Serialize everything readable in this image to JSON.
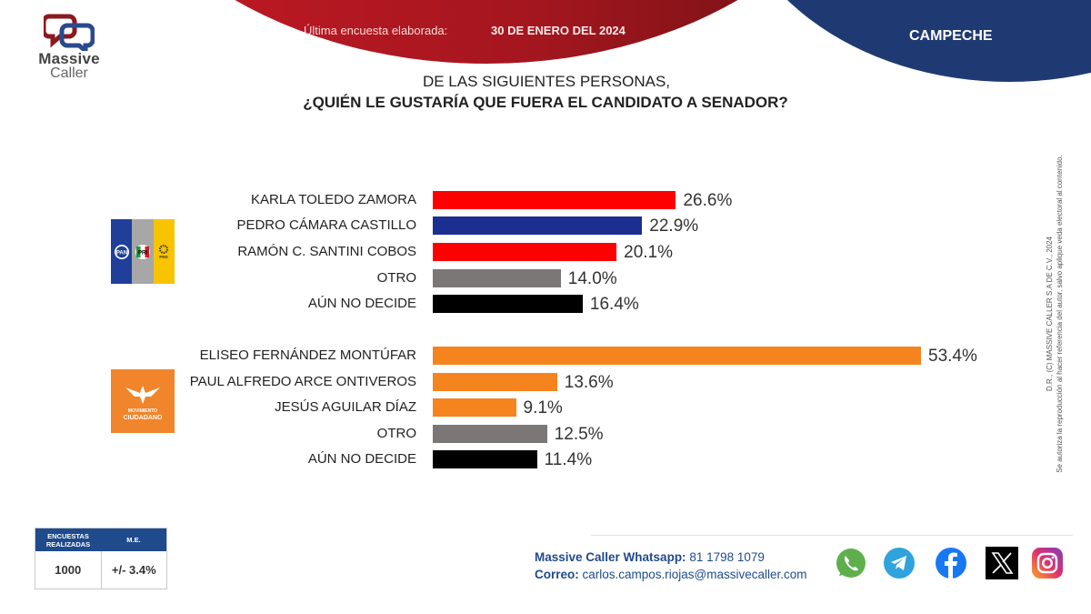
{
  "header": {
    "brand_line1": "Massive",
    "brand_line2": "Caller",
    "survey_label": "Última encuesta elaborada:",
    "survey_date": "30 DE ENERO DEL 2024",
    "state": "CAMPECHE"
  },
  "question": {
    "line1": "DE LAS SIGUIENTES  PERSONAS,",
    "line2": "¿QUIÉN LE GUSTARÍA QUE FUERA EL CANDIDATO  A SENADOR?"
  },
  "parties": {
    "coalition": {
      "logos": [
        "PAN",
        "PRI",
        "PRD"
      ],
      "colors": [
        "#1f3f9a",
        "#a7a7a7",
        "#f8c300"
      ]
    },
    "mc": {
      "line1": "MOVIMIENTO",
      "line2": "CIUDADANO",
      "color": "#f0852b"
    }
  },
  "chart_data": {
    "type": "bar",
    "orientation": "horizontal",
    "title": "¿QUIÉN LE GUSTARÍA QUE FUERA EL CANDIDATO A SENADOR?",
    "xlabel": "",
    "ylabel": "",
    "xlim": [
      0,
      60
    ],
    "grid": false,
    "groups": [
      {
        "name": "PAN-PRI-PRD",
        "categories": [
          "KARLA TOLEDO ZAMORA",
          "PEDRO CÁMARA CASTILLO",
          "RAMÓN C. SANTINI COBOS",
          "OTRO",
          "AÚN NO DECIDE"
        ],
        "values": [
          26.6,
          22.9,
          20.1,
          14.0,
          16.4
        ],
        "labels": [
          "26.6%",
          "22.9%",
          "20.1%",
          "14.0%",
          "16.4%"
        ],
        "colors": [
          "#ff0000",
          "#1a2f8f",
          "#ff0000",
          "#7b7777",
          "#000000"
        ]
      },
      {
        "name": "Movimiento Ciudadano",
        "categories": [
          "ELISEO FERNÁNDEZ MONTÚFAR",
          "PAUL ALFREDO ARCE ONTIVEROS",
          "JESÚS AGUILAR DÍAZ",
          "OTRO",
          "AÚN NO DECIDE"
        ],
        "values": [
          53.4,
          13.6,
          9.1,
          12.5,
          11.4
        ],
        "labels": [
          "53.4%",
          "13.6%",
          "9.1%",
          "12.5%",
          "11.4%"
        ],
        "colors": [
          "#f5841f",
          "#f5841f",
          "#f5841f",
          "#7b7777",
          "#000000"
        ]
      }
    ]
  },
  "copyright": {
    "line1": "D.R., (C) MASSIVE CALLER S.A DE C.V., 2024",
    "line2": "Se autoriza la reproducción al hacer referencia del autor, salvo aplique veda electoral al contenido."
  },
  "stats": {
    "col1_header": "ENCUESTAS REALIZADAS",
    "col2_header": "M.E.",
    "col1_value": "1000",
    "col2_value": "+/- 3.4%"
  },
  "contact": {
    "whatsapp_label": "Massive Caller Whatsapp:",
    "whatsapp_value": " 81 1798 1079",
    "email_label": "Correo:",
    "email_value": " carlos.campos.riojas@massivecaller.com"
  },
  "social": [
    "whatsapp-icon",
    "telegram-icon",
    "facebook-icon",
    "x-icon",
    "instagram-icon"
  ]
}
